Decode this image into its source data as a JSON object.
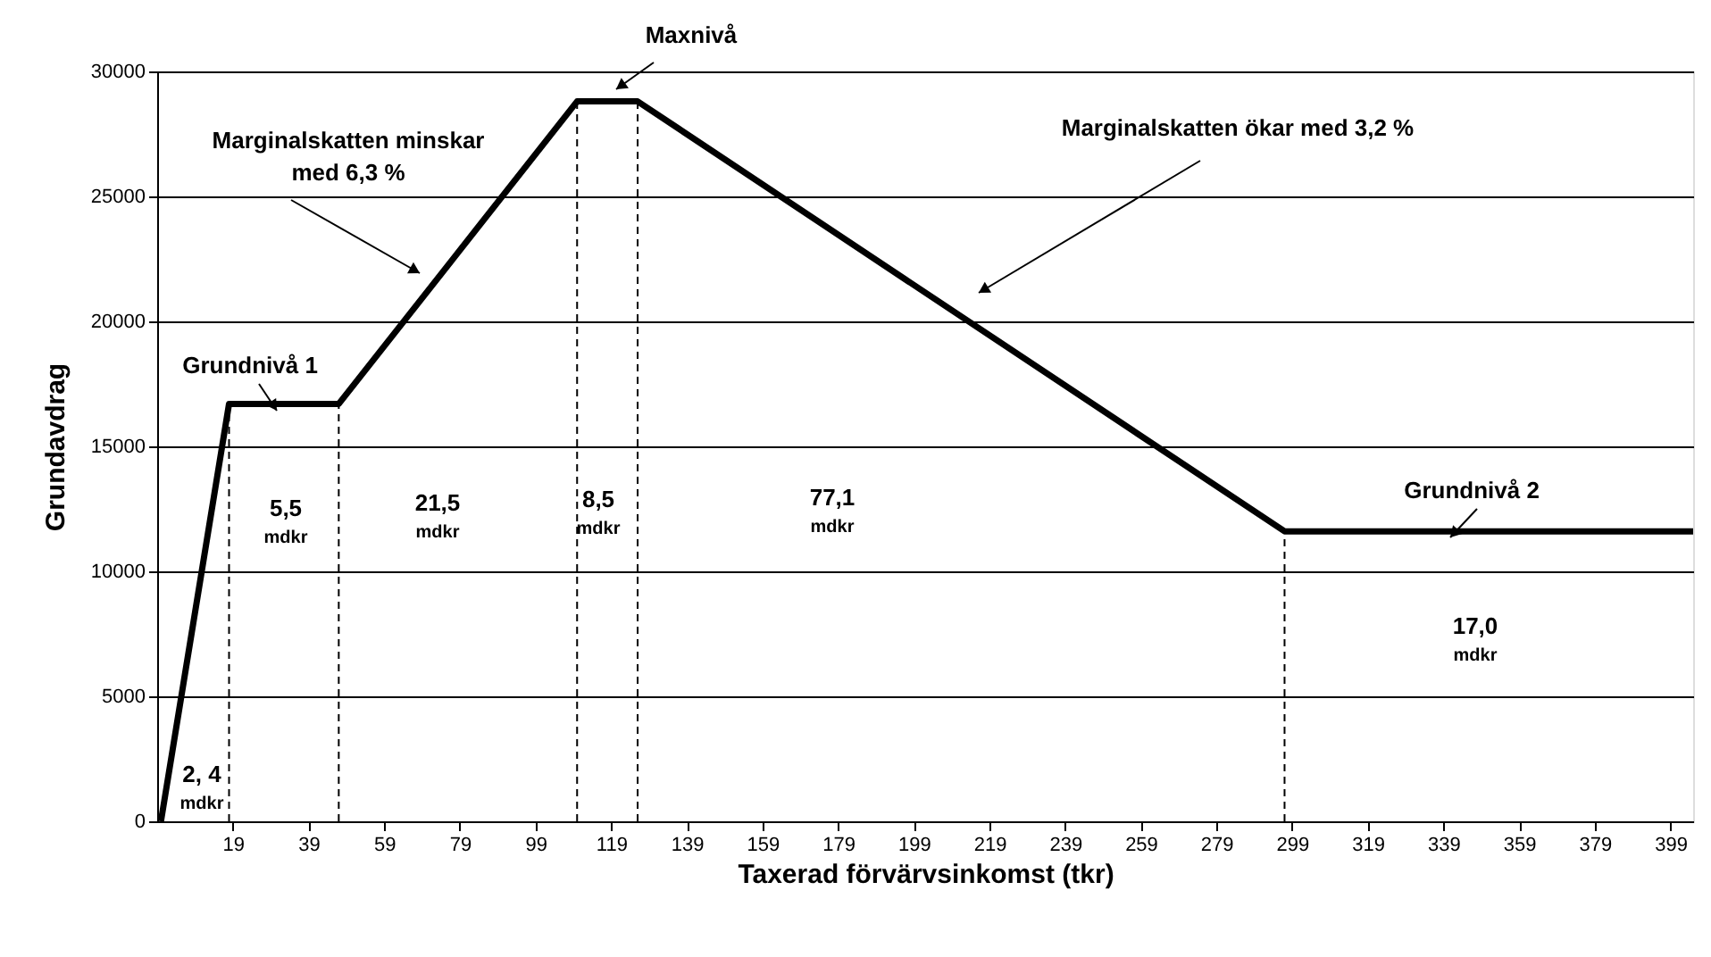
{
  "chart_data": {
    "type": "line",
    "xlabel": "Taxerad förvärvsinkomst (tkr)",
    "ylabel": "Grundavdrag",
    "x": [
      0,
      18,
      47,
      110,
      126,
      297,
      405
    ],
    "values": [
      0,
      16700,
      16700,
      28800,
      28800,
      11600,
      11600
    ],
    "color": "#000000",
    "line_style": "solid",
    "xlim": [
      -1,
      405
    ],
    "xticks": [
      19,
      39,
      59,
      79,
      99,
      119,
      139,
      159,
      179,
      199,
      219,
      239,
      259,
      279,
      299,
      319,
      339,
      359,
      379,
      399
    ],
    "ylim": [
      0,
      30000
    ],
    "yticks": [
      0,
      5000,
      10000,
      15000,
      20000,
      25000,
      30000
    ],
    "grid": "y",
    "ref_lines": [
      {
        "axis": "x",
        "value": 18,
        "line_style": "dashed",
        "color": "#000000"
      },
      {
        "axis": "x",
        "value": 47,
        "line_style": "dashed",
        "color": "#000000"
      },
      {
        "axis": "x",
        "value": 110,
        "line_style": "dashed",
        "color": "#000000"
      },
      {
        "axis": "x",
        "value": 126,
        "line_style": "dashed",
        "color": "#000000"
      },
      {
        "axis": "x",
        "value": 297,
        "line_style": "dashed",
        "color": "#000000"
      }
    ],
    "annotations": [
      "Grundnivå 1",
      "Marginalskatten minskar\nmed 6,3 %",
      "Maxnivå",
      "Marginalskatten ökar med 3,2 %",
      "Grundnivå 2",
      "2, 4\nmdkr",
      "5,5\nmdkr",
      "21,5\nmdkr",
      "8,5\nmdkr",
      "77,1\nmdkr",
      "17,0\nmdkr"
    ]
  }
}
